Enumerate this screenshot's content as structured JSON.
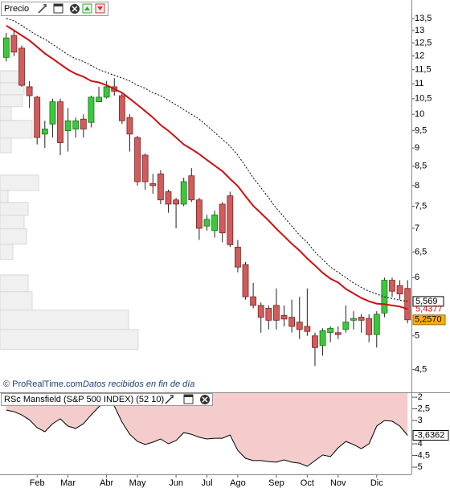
{
  "chart_data": [
    {
      "type": "candlestick",
      "title": "Precio",
      "annotations": [
        "© ProRealTime.com",
        "Datos recibidos en fin de día"
      ],
      "open": [
        11.95,
        12.8,
        12.3,
        10.9,
        10.55,
        9.4,
        9.7,
        10.4,
        9.5,
        9.55,
        9.85,
        9.75,
        10.4,
        10.55,
        10.9,
        10.6,
        9.9,
        9.3,
        8.8,
        8.05,
        8.3,
        7.85,
        7.65,
        7.55,
        8.25,
        7.65,
        7.05,
        6.95,
        7.55,
        7.75,
        6.6,
        6.25,
        5.65,
        5.5,
        5.45,
        5.5,
        5.33,
        5.3,
        5.22,
        5.15,
        5.0,
        4.85,
        5.05,
        5.05,
        5.1,
        5.25,
        5.3,
        5.28,
        5.02,
        5.37,
        5.95,
        5.85,
        5.8
      ],
      "high": [
        12.9,
        13.0,
        12.4,
        11.1,
        10.6,
        9.8,
        10.5,
        10.5,
        10.2,
        9.9,
        10.0,
        10.6,
        10.9,
        11.1,
        11.2,
        10.7,
        10.0,
        9.35,
        8.85,
        8.3,
        8.4,
        7.9,
        7.7,
        8.2,
        8.45,
        7.7,
        7.3,
        7.4,
        7.6,
        7.85,
        6.75,
        6.3,
        5.9,
        5.55,
        5.5,
        5.8,
        5.5,
        5.6,
        5.65,
        5.8,
        5.05,
        5.12,
        5.15,
        5.15,
        5.5,
        5.4,
        5.35,
        5.35,
        5.4,
        6.0,
        6.0,
        5.95,
        5.95
      ],
      "low": [
        11.8,
        12.0,
        10.9,
        10.2,
        9.1,
        9.0,
        9.3,
        8.8,
        8.9,
        9.3,
        9.3,
        9.6,
        10.4,
        10.5,
        10.6,
        9.7,
        8.9,
        8.0,
        7.9,
        7.8,
        7.55,
        7.35,
        7.0,
        7.5,
        7.6,
        6.75,
        6.95,
        6.8,
        6.7,
        6.6,
        6.1,
        5.6,
        5.45,
        5.05,
        5.1,
        5.1,
        5.15,
        5.05,
        4.95,
        5.0,
        4.55,
        4.7,
        4.9,
        4.95,
        5.05,
        5.1,
        5.05,
        4.9,
        4.82,
        5.3,
        5.65,
        5.6,
        5.2
      ],
      "close": [
        12.7,
        12.15,
        10.95,
        10.6,
        9.3,
        9.55,
        10.4,
        9.15,
        9.8,
        9.8,
        9.55,
        10.55,
        10.55,
        10.9,
        10.75,
        9.8,
        9.4,
        8.1,
        8.1,
        8.0,
        7.65,
        7.55,
        7.55,
        8.1,
        7.65,
        7.0,
        7.2,
        7.3,
        6.9,
        6.65,
        6.2,
        5.65,
        5.5,
        5.3,
        5.25,
        5.25,
        5.27,
        5.15,
        5.1,
        5.07,
        4.82,
        5.08,
        5.12,
        5.02,
        5.22,
        5.28,
        5.25,
        5.02,
        5.35,
        5.95,
        5.75,
        5.7,
        5.257
      ],
      "close_last_label": "5,2570",
      "up_color": "#3cc83c",
      "down_color": "#d05c5c",
      "overlays": [
        {
          "color": "#000000",
          "dashed": true,
          "last_label": "5,569",
          "values": [
            13.5,
            13.4,
            13.2,
            13.0,
            12.8,
            12.65,
            12.45,
            12.25,
            12.05,
            11.9,
            11.8,
            11.65,
            11.5,
            11.4,
            11.3,
            11.2,
            11.1,
            10.95,
            10.85,
            10.7,
            10.6,
            10.45,
            10.3,
            10.15,
            10.0,
            9.85,
            9.65,
            9.45,
            9.25,
            9.05,
            8.8,
            8.5,
            8.2,
            7.95,
            7.7,
            7.45,
            7.25,
            7.05,
            6.85,
            6.7,
            6.5,
            6.35,
            6.2,
            6.1,
            6.0,
            5.9,
            5.82,
            5.75,
            5.7,
            5.65,
            5.62,
            5.59,
            5.569
          ]
        },
        {
          "color": "#cc1111",
          "dashed": false,
          "last_label": "5,4377",
          "values": [
            13.2,
            13.0,
            12.8,
            12.6,
            12.35,
            12.1,
            11.9,
            11.7,
            11.5,
            11.35,
            11.25,
            11.1,
            11.05,
            10.95,
            10.82,
            10.7,
            10.5,
            10.3,
            10.1,
            9.9,
            9.67,
            9.5,
            9.3,
            9.1,
            8.97,
            8.83,
            8.67,
            8.52,
            8.37,
            8.17,
            7.99,
            7.74,
            7.51,
            7.34,
            7.17,
            6.99,
            6.83,
            6.67,
            6.53,
            6.37,
            6.23,
            6.09,
            5.98,
            5.91,
            5.79,
            5.71,
            5.63,
            5.57,
            5.53,
            5.52,
            5.5,
            5.48,
            5.4377
          ]
        }
      ],
      "volume_profile": {
        "color": "#f0f0f0",
        "bins": [
          11.46,
          11.04,
          10.63,
          10.24,
          9.81,
          9.28,
          8.87,
          8.27,
          7.88,
          7.59,
          7.29,
          6.99,
          6.66,
          6.35,
          6.05,
          5.74,
          5.42,
          5.1,
          4.79
        ],
        "values": [
          25,
          30,
          28,
          14,
          40,
          14,
          0,
          48,
          10,
          35,
          30,
          33,
          16,
          0,
          35,
          40,
          160,
          172
        ]
      },
      "ylim": [
        4.19,
        14.3
      ],
      "log_scale": true,
      "yticks": [
        {
          "value": 13.5,
          "label": "13,5"
        },
        13,
        {
          "value": 12.5,
          "label": "12,5"
        },
        12,
        {
          "value": 11.5,
          "label": "11,5"
        },
        11,
        {
          "value": 10.5,
          "label": "10,5"
        },
        10,
        {
          "value": 9.5,
          "label": "9,5"
        },
        9,
        {
          "value": 8.5,
          "label": "8,5"
        },
        8,
        {
          "value": 7.5,
          "label": "7,5"
        },
        7,
        {
          "value": 6.5,
          "label": "6,5"
        },
        6,
        5,
        {
          "value": 4.5,
          "label": "4,5"
        }
      ]
    },
    {
      "type": "area",
      "title": "RSc Mansfield (S&P 500 INDEX) (52 10)",
      "categories": [
        null,
        null,
        null,
        null,
        "Feb",
        null,
        null,
        null,
        "Mar",
        null,
        null,
        null,
        null,
        "Abr",
        null,
        null,
        null,
        "May",
        null,
        null,
        null,
        null,
        "Jun",
        null,
        null,
        null,
        "Jul",
        null,
        null,
        null,
        "Ago",
        null,
        null,
        null,
        null,
        "Sep",
        null,
        null,
        null,
        "Oct",
        null,
        null,
        null,
        "Nov",
        null,
        null,
        null,
        null,
        "Dic",
        null,
        null,
        null,
        null
      ],
      "values": [
        -2.55,
        -2.62,
        -2.76,
        -2.97,
        -3.31,
        -3.48,
        -3.14,
        -2.93,
        -3.24,
        -3.34,
        -3.14,
        -2.76,
        -2.41,
        -2.17,
        -2.38,
        -3.07,
        -3.59,
        -3.9,
        -4.03,
        -3.93,
        -3.79,
        -4.0,
        -3.86,
        -3.52,
        -3.59,
        -3.72,
        -3.79,
        -3.76,
        -3.76,
        -3.62,
        -4.28,
        -4.62,
        -4.72,
        -4.72,
        -4.76,
        -4.79,
        -4.69,
        -4.79,
        -4.83,
        -4.97,
        -4.72,
        -4.48,
        -4.55,
        -4.17,
        -3.9,
        -4.03,
        -4.21,
        -4.0,
        -3.24,
        -3.0,
        -3.03,
        -3.24,
        -3.6362
      ],
      "last_label": "-3,6362",
      "color": "#f5cccc",
      "line_color": "#000000",
      "ylim": [
        -5.31,
        -1.79
      ],
      "yticks": [
        -2,
        {
          "value": -2.5,
          "label": "-2,5"
        },
        -3,
        -4,
        {
          "value": -4.5,
          "label": "-4,5"
        },
        -5
      ]
    }
  ]
}
